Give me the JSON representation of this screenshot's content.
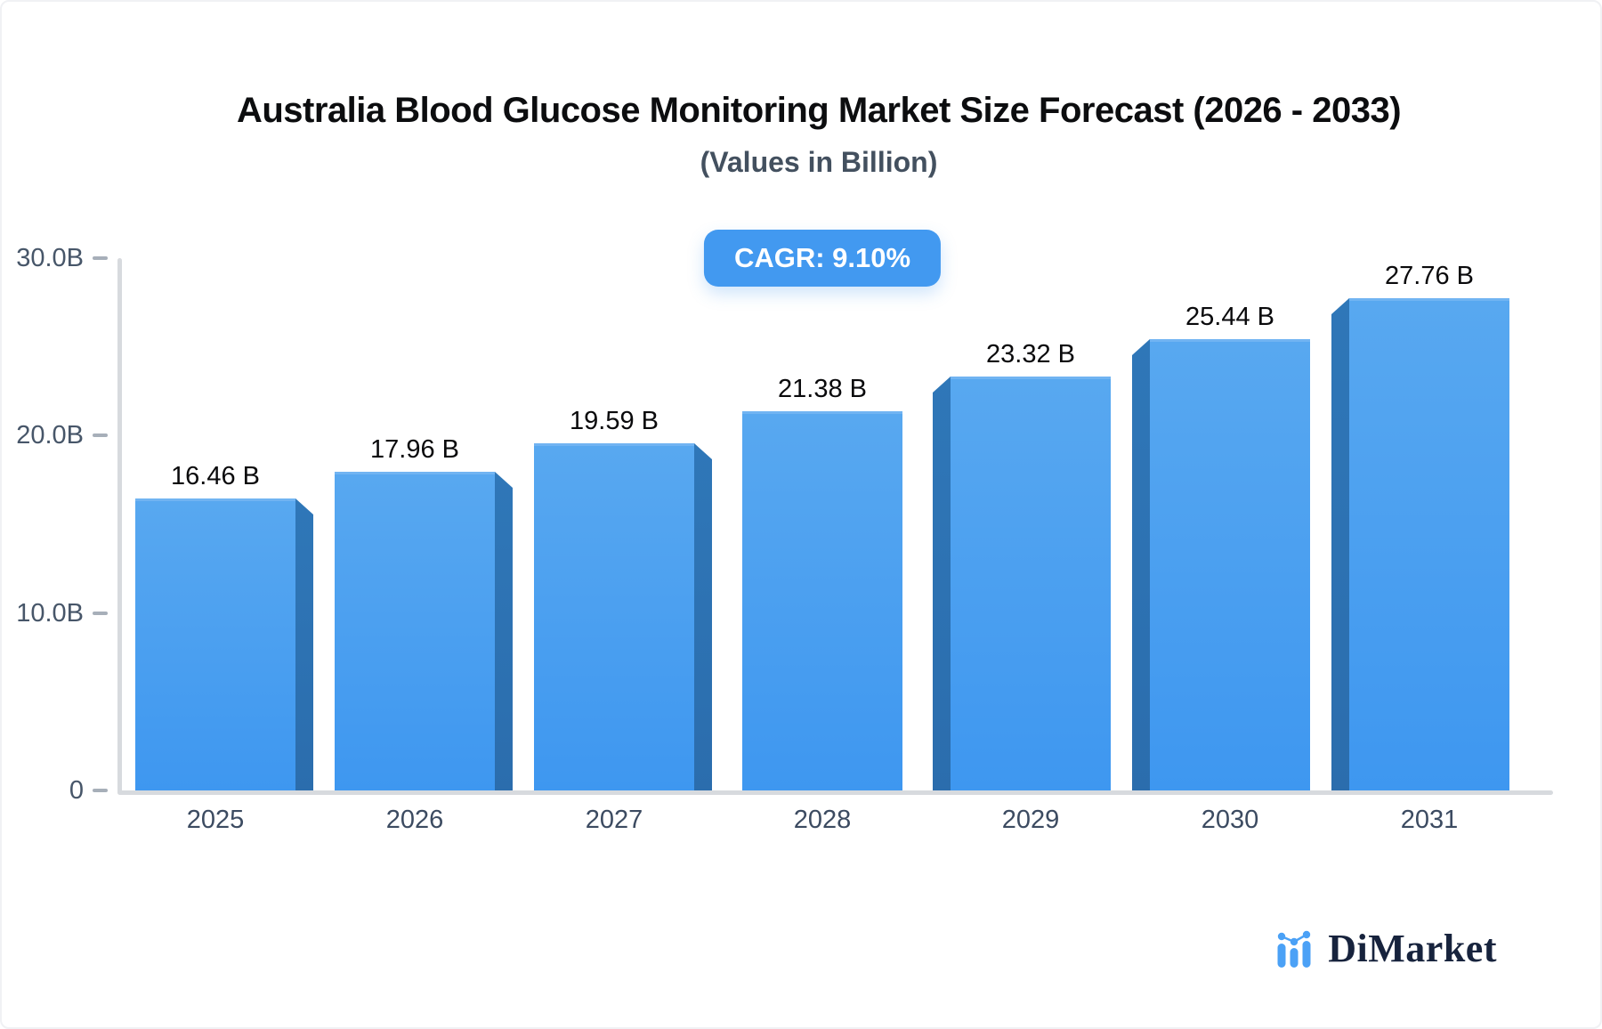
{
  "header": {
    "title": "Australia Blood Glucose Monitoring Market Size Forecast (2026 - 2033)",
    "subtitle": "(Values in Billion)",
    "cagr_badge": "CAGR: 9.10%"
  },
  "chart_data": {
    "type": "bar",
    "title": "Australia Blood Glucose Monitoring Market Size Forecast (2026 - 2033)",
    "subtitle": "(Values in Billion)",
    "cagr": "9.10%",
    "categories": [
      "2025",
      "2026",
      "2027",
      "2028",
      "2029",
      "2030",
      "2031"
    ],
    "values": [
      16.46,
      17.96,
      19.59,
      21.38,
      23.32,
      25.44,
      27.76
    ],
    "bar_labels": [
      "16.46 B",
      "17.96 B",
      "19.59 B",
      "21.38 B",
      "23.32 B",
      "25.44 B",
      "27.76 B"
    ],
    "ylim": [
      0,
      30
    ],
    "yticks": [
      {
        "label": "30.0B",
        "value": 30
      },
      {
        "label": "20.0B",
        "value": 20
      },
      {
        "label": "10.0B",
        "value": 10
      },
      {
        "label": "0",
        "value": 0
      }
    ],
    "grid": false,
    "legend": false,
    "colors": {
      "badge_bg": "#4299f0",
      "bar_body_top": "#58a8f0",
      "bar_body_bottom": "#3e97f0",
      "bar_side": "#2e74b4",
      "bar_top_highlight": "#71b4f2",
      "axis_line": "#d7dade",
      "tick_dash": "#a7afb9",
      "ytick_text": "#475669",
      "xtick_text": "#3c4b61",
      "value_text": "#0a0a0c",
      "logo_text": "#17233d",
      "logo_icon": "#4ba1f6"
    }
  },
  "footer": {
    "logo_text": "DiMarket"
  }
}
